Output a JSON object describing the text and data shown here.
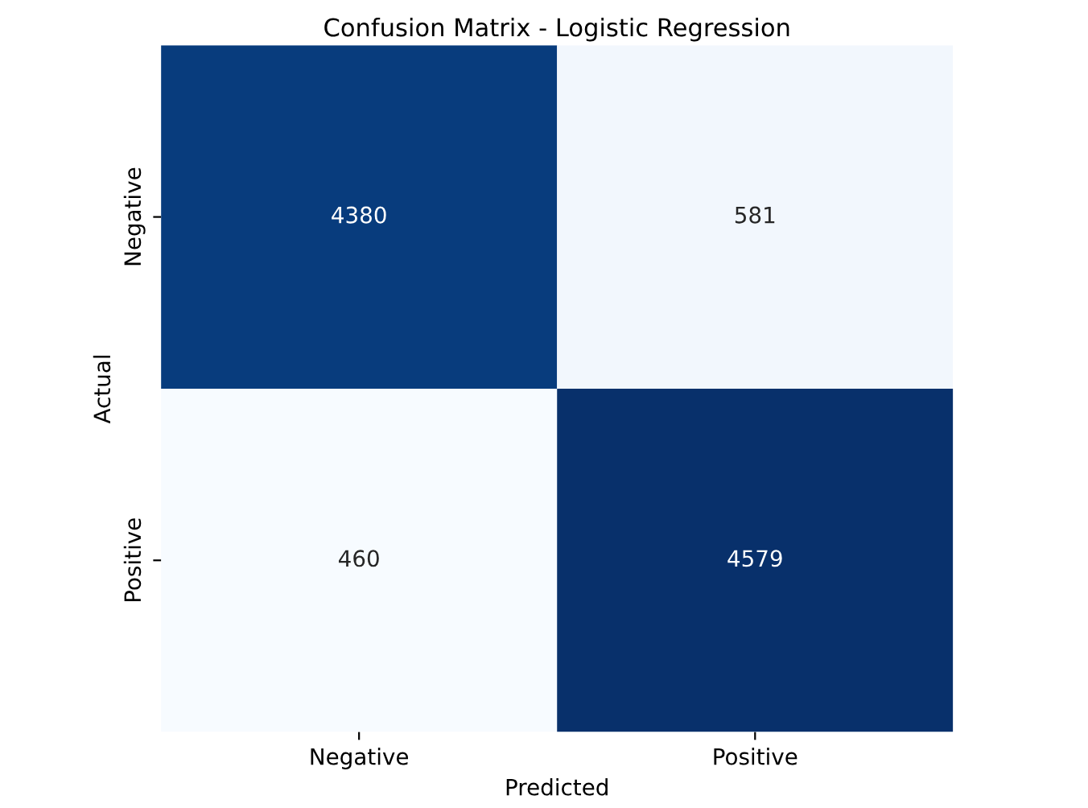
{
  "chart_data": {
    "type": "heatmap",
    "title": "Confusion Matrix - Logistic Regression",
    "xlabel": "Predicted",
    "ylabel": "Actual",
    "categories": [
      "Negative",
      "Positive"
    ],
    "y_categories": [
      "Negative",
      "Positive"
    ],
    "cells": [
      [
        4380,
        581
      ],
      [
        460,
        4579
      ]
    ],
    "data_labels": true
  }
}
